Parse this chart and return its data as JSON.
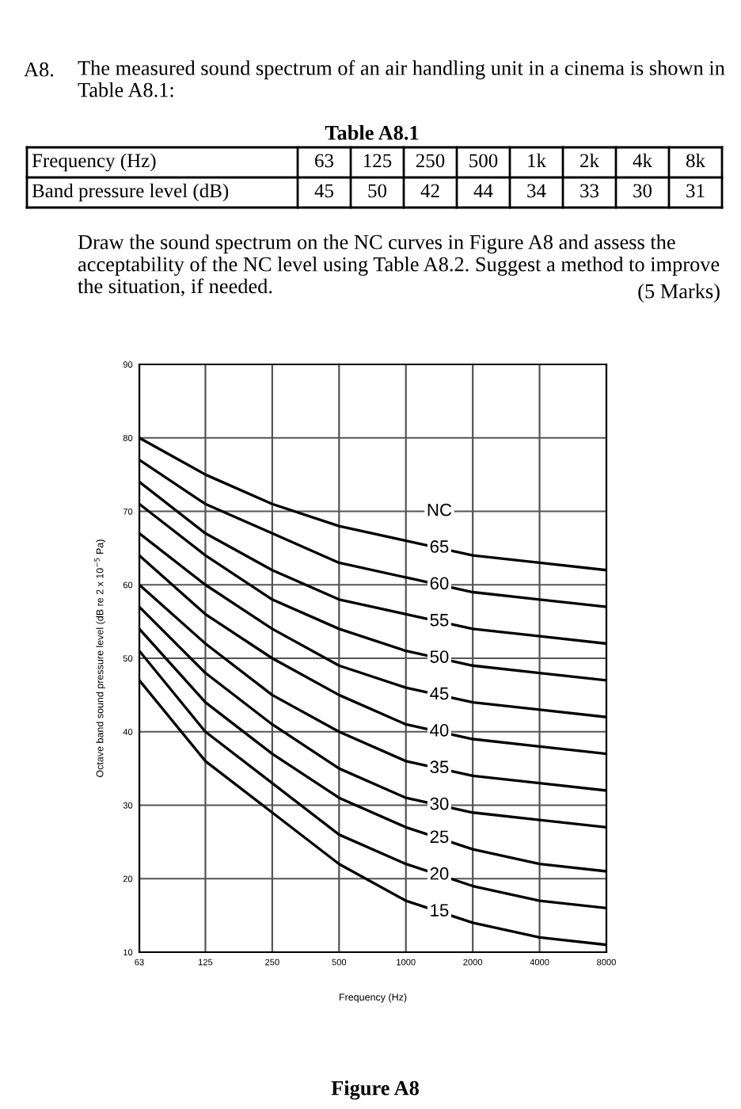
{
  "chart_data": {
    "type": "line",
    "xlabel": "Frequency (Hz)",
    "ylabel": "Octave band sound pressure level (dB re 2 x 10$^{−5}$ Pa)",
    "x": [
      63,
      125,
      250,
      500,
      1000,
      2000,
      4000,
      8000
    ],
    "log": "x",
    "xlim": [
      63,
      8000
    ],
    "xticks": [
      63,
      125,
      250,
      500,
      1000,
      2000,
      4000,
      8000
    ],
    "ylim": [
      10,
      90
    ],
    "yticks": [
      10,
      20,
      30,
      40,
      50,
      60,
      70,
      80,
      90
    ],
    "grid": true,
    "series": [
      {
        "name": "65",
        "color": "#000000",
        "values": [
          80,
          75,
          71,
          68,
          66,
          64,
          63,
          62
        ]
      },
      {
        "name": "60",
        "color": "#000000",
        "values": [
          77,
          71,
          67,
          63,
          61,
          59,
          58,
          57
        ]
      },
      {
        "name": "55",
        "color": "#000000",
        "values": [
          74,
          67,
          62,
          58,
          56,
          54,
          53,
          52
        ]
      },
      {
        "name": "50",
        "color": "#000000",
        "values": [
          71,
          64,
          58,
          54,
          51,
          49,
          48,
          47
        ]
      },
      {
        "name": "45",
        "color": "#000000",
        "values": [
          67,
          60,
          54,
          49,
          46,
          44,
          43,
          42
        ]
      },
      {
        "name": "40",
        "color": "#000000",
        "values": [
          64,
          56,
          50,
          45,
          41,
          39,
          38,
          37
        ]
      },
      {
        "name": "35",
        "color": "#000000",
        "values": [
          60,
          52,
          45,
          40,
          36,
          34,
          33,
          32
        ]
      },
      {
        "name": "30",
        "color": "#000000",
        "values": [
          57,
          48,
          41,
          35,
          31,
          29,
          28,
          27
        ]
      },
      {
        "name": "25",
        "color": "#000000",
        "values": [
          54,
          44,
          37,
          31,
          27,
          24,
          22,
          21
        ]
      },
      {
        "name": "20",
        "color": "#000000",
        "values": [
          51,
          40,
          33,
          26,
          22,
          19,
          17,
          16
        ]
      },
      {
        "name": "15",
        "color": "#000000",
        "values": [
          47,
          36,
          29,
          22,
          17,
          14,
          12,
          11
        ]
      }
    ],
    "annotations": [
      "A8.",
      "The measured sound spectrum of an air handling unit in a cinema is shown in Table A8.1:",
      "Table A8.1",
      "Frequency (Hz)",
      "63",
      "125",
      "250",
      "500",
      "1k",
      "2k",
      "4k",
      "8k",
      "Band pressure level (dB)",
      "45",
      "50",
      "42",
      "44",
      "34",
      "33",
      "30",
      "31",
      "Draw the sound spectrum on the NC curves in Figure A8 and assess the acceptability of the NC level using Table A8.2. Suggest a method to improve the situation, if needed.",
      "(5 Marks)",
      "NC",
      "Figure A8"
    ]
  }
}
